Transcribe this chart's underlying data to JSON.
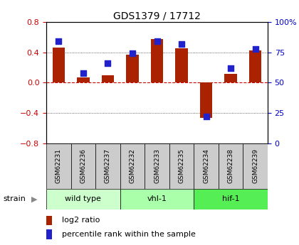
{
  "title": "GDS1379 / 17712",
  "samples": [
    "GSM62231",
    "GSM62236",
    "GSM62237",
    "GSM62232",
    "GSM62233",
    "GSM62235",
    "GSM62234",
    "GSM62238",
    "GSM62239"
  ],
  "log2_ratio": [
    0.46,
    0.07,
    0.1,
    0.37,
    0.58,
    0.45,
    -0.46,
    0.12,
    0.43
  ],
  "percentile_rank": [
    84,
    58,
    66,
    74,
    84,
    82,
    22,
    62,
    78
  ],
  "groups": [
    {
      "label": "wild type",
      "start": 0,
      "end": 3,
      "color": "#ccffcc"
    },
    {
      "label": "vhl-1",
      "start": 3,
      "end": 6,
      "color": "#aaffaa"
    },
    {
      "label": "hif-1",
      "start": 6,
      "end": 9,
      "color": "#55ee55"
    }
  ],
  "ylim_left": [
    -0.8,
    0.8
  ],
  "ylim_right": [
    0,
    100
  ],
  "yticks_left": [
    -0.8,
    -0.4,
    0.0,
    0.4,
    0.8
  ],
  "yticks_right": [
    0,
    25,
    50,
    75,
    100
  ],
  "bar_color": "#aa2200",
  "dot_color": "#2222cc",
  "zero_line_color": "#cc0000",
  "grid_color": "#333333",
  "bg_plot": "#ffffff",
  "bg_figure": "#ffffff",
  "label_color_left": "#cc0000",
  "label_color_right": "#0000cc",
  "legend_bar_label": "log2 ratio",
  "legend_dot_label": "percentile rank within the sample",
  "strain_label": "strain",
  "sample_bg": "#cccccc",
  "bar_width": 0.5,
  "dot_size": 40
}
